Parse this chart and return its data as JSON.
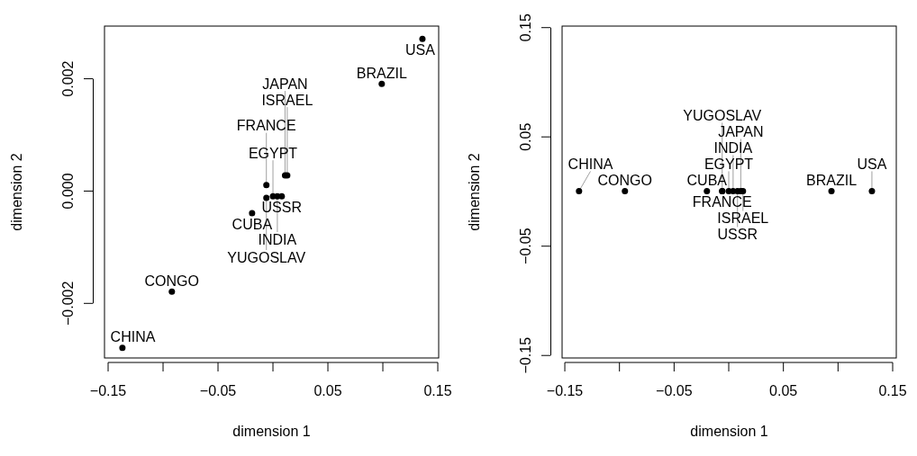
{
  "chart_data": [
    {
      "type": "scatter",
      "marker": "circle",
      "xlabel": "dimension 1",
      "ylabel": "dimension 2",
      "xlim": [
        -0.1533,
        0.1508
      ],
      "ylim": [
        -0.00298,
        0.00293
      ],
      "xticks": [
        {
          "value": -0.15,
          "label": "−0.15"
        },
        {
          "value": -0.1,
          "label": null
        },
        {
          "value": -0.05,
          "label": "−0.05"
        },
        {
          "value": 0,
          "label": null
        },
        {
          "value": 0.05,
          "label": "0.05"
        },
        {
          "value": 0.1,
          "label": null
        },
        {
          "value": 0.15,
          "label": "0.15"
        }
      ],
      "yticks": [
        {
          "value": -0.002,
          "label": "−0.002"
        },
        {
          "value": 0,
          "label": "0.000"
        },
        {
          "value": 0.002,
          "label": "0.002"
        }
      ],
      "series": [
        {
          "color": "#000000",
          "x": [
            0.099,
            -0.092,
            -0.019,
            0.0,
            -0.006,
            0.004,
            0.013,
            0.011,
            -0.137,
            0.008,
            0.136,
            -0.006
          ],
          "values": [
            0.0019,
            -0.0018,
            -0.0004,
            -0.0001,
            0.0001,
            -0.0001,
            0.00027,
            0.00027,
            -0.0028,
            -0.0001,
            0.0027,
            -0.00013
          ],
          "value_labels": [
            "BRAZIL",
            "CONGO",
            "CUBA",
            "EGYPT",
            "FRANCE",
            "INDIA",
            "ISRAEL",
            "JAPAN",
            "CHINA",
            "USSR",
            "USA",
            "YUGOSLAV"
          ]
        }
      ]
    },
    {
      "type": "scatter",
      "marker": "circle",
      "xlabel": "dimension 1",
      "ylabel": "dimension 2",
      "xlim": [
        -0.1525,
        0.1533
      ],
      "ylim": [
        -0.1527,
        0.151
      ],
      "xticks": [
        {
          "value": -0.15,
          "label": "−0.15"
        },
        {
          "value": -0.1,
          "label": null
        },
        {
          "value": -0.05,
          "label": "−0.05"
        },
        {
          "value": 0,
          "label": null
        },
        {
          "value": 0.05,
          "label": "0.05"
        },
        {
          "value": 0.1,
          "label": null
        },
        {
          "value": 0.15,
          "label": "0.15"
        }
      ],
      "yticks": [
        {
          "value": -0.15,
          "label": "−0.15"
        },
        {
          "value": -0.05,
          "label": "−0.05"
        },
        {
          "value": 0.05,
          "label": "0.05"
        },
        {
          "value": 0.15,
          "label": "0.15"
        }
      ],
      "series": [
        {
          "color": "#000000",
          "x": [
            0.094,
            -0.095,
            -0.02,
            0.0,
            -0.006,
            0.004,
            0.013,
            0.011,
            -0.137,
            0.008,
            0.131,
            -0.006
          ],
          "values": [
            0,
            0,
            0,
            0,
            0,
            0,
            0,
            0,
            0,
            0,
            0,
            0
          ],
          "value_labels": [
            "BRAZIL",
            "CONGO",
            "CUBA",
            "EGYPT",
            "FRANCE",
            "INDIA",
            "ISRAEL",
            "JAPAN",
            "CHINA",
            "USSR",
            "USA",
            "YUGOSLAV"
          ]
        }
      ]
    }
  ]
}
